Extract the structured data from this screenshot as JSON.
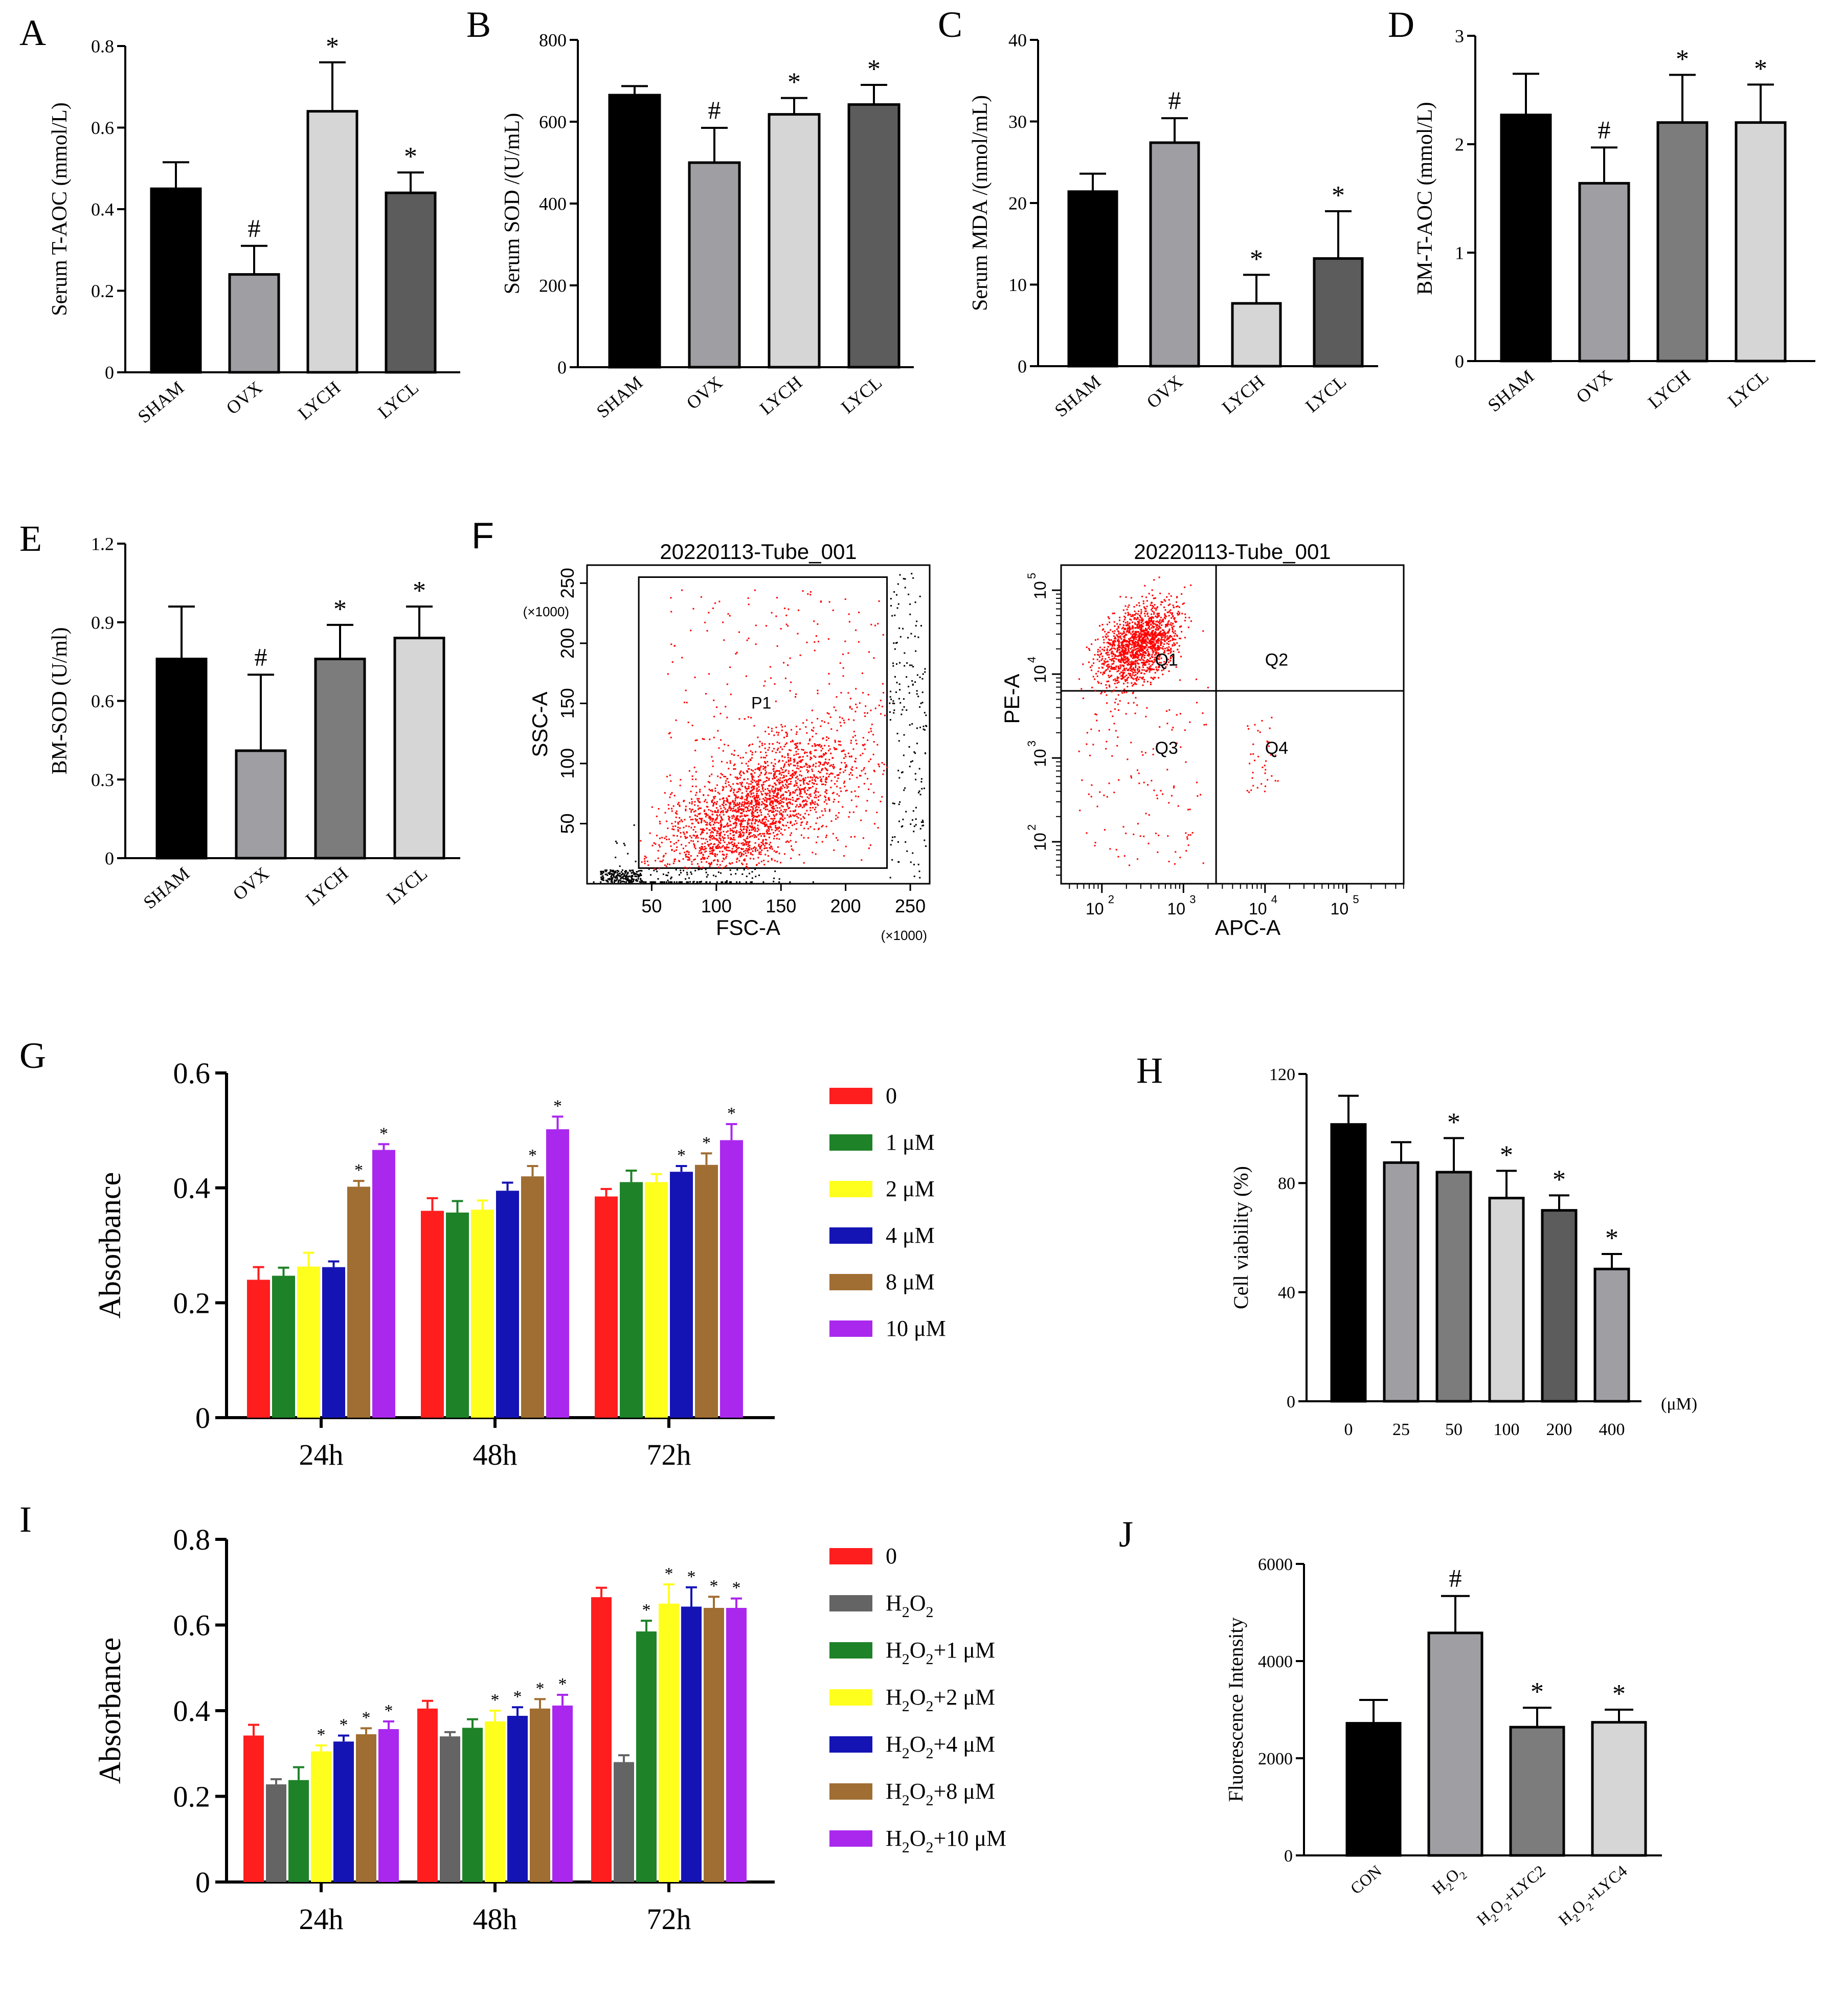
{
  "chart_data": [
    {
      "id": "A",
      "panel_label": "A",
      "type": "bar",
      "ylabel": "Serum T-AOC (mmol/L)",
      "ylim": [
        0,
        0.8
      ],
      "ticks": [
        "0",
        "0.2",
        "0.4",
        "0.6",
        "0.8"
      ],
      "categories": [
        "SHAM",
        "OVX",
        "LYCH",
        "LYCL"
      ],
      "values": [
        0.45,
        0.24,
        0.64,
        0.44
      ],
      "errors": [
        0.065,
        0.07,
        0.12,
        0.05
      ],
      "marks": [
        "",
        "#",
        "*",
        "*"
      ],
      "colors": [
        "#000000",
        "#9e9ea3",
        "#d6d6d6",
        "#5c5c5c"
      ]
    },
    {
      "id": "B",
      "panel_label": "B",
      "type": "bar",
      "ylabel": "Serum SOD /(U/mL)",
      "ylim": [
        0,
        800
      ],
      "ticks": [
        "0",
        "200",
        "400",
        "600",
        "800"
      ],
      "categories": [
        "SHAM",
        "OVX",
        "LYCH",
        "LYCL"
      ],
      "values": [
        665,
        500,
        618,
        642
      ],
      "errors": [
        22,
        85,
        40,
        48
      ],
      "marks": [
        "",
        "#",
        "*",
        "*"
      ],
      "colors": [
        "#000000",
        "#9e9ea3",
        "#d6d6d6",
        "#5c5c5c"
      ]
    },
    {
      "id": "C",
      "panel_label": "C",
      "type": "bar",
      "ylabel": "Serum MDA /(nmol/mL)",
      "ylim": [
        0,
        40
      ],
      "ticks": [
        "0",
        "10",
        "20",
        "30",
        "40"
      ],
      "categories": [
        "SHAM",
        "OVX",
        "LYCH",
        "LYCL"
      ],
      "values": [
        21.4,
        27.4,
        7.7,
        13.2
      ],
      "errors": [
        2.2,
        3.0,
        3.5,
        5.8
      ],
      "marks": [
        "",
        "#",
        "*",
        "*"
      ],
      "colors": [
        "#000000",
        "#9e9ea3",
        "#d6d6d6",
        "#5c5c5c"
      ]
    },
    {
      "id": "D",
      "panel_label": "D",
      "type": "bar",
      "ylabel": "BM-T-AOC (mmol/L)",
      "ylim": [
        0,
        3
      ],
      "ticks": [
        "0",
        "1",
        "2",
        "3"
      ],
      "categories": [
        "SHAM",
        "OVX",
        "LYCH",
        "LYCL"
      ],
      "values": [
        2.27,
        1.64,
        2.2,
        2.2
      ],
      "errors": [
        0.38,
        0.33,
        0.44,
        0.35
      ],
      "marks": [
        "",
        "#",
        "*",
        "*"
      ],
      "colors": [
        "#000000",
        "#9e9ea3",
        "#7c7c7c",
        "#d6d6d6"
      ]
    },
    {
      "id": "E",
      "panel_label": "E",
      "type": "bar",
      "ylabel": "BM-SOD (U/ml)",
      "ylim": [
        0,
        1.2
      ],
      "ticks": [
        "0",
        "0.3",
        "0.6",
        "0.9",
        "1.2"
      ],
      "categories": [
        "SHAM",
        "OVX",
        "LYCH",
        "LYCL"
      ],
      "values": [
        0.76,
        0.41,
        0.76,
        0.84
      ],
      "errors": [
        0.2,
        0.29,
        0.13,
        0.12
      ],
      "marks": [
        "",
        "#",
        "*",
        "*"
      ],
      "colors": [
        "#000000",
        "#9e9ea3",
        "#7c7c7c",
        "#d6d6d6"
      ]
    },
    {
      "id": "F1",
      "panel_label": "F",
      "type": "scatter",
      "title": "20220113-Tube_001",
      "xlabel": "FSC-A",
      "ylabel": "SSC-A",
      "xlim": [
        0,
        265
      ],
      "ylim": [
        0,
        265
      ],
      "xticks": [
        "50",
        "100",
        "150",
        "200",
        "250"
      ],
      "yticks": [
        "50",
        "100",
        "150",
        "200",
        "250"
      ],
      "x_multiplier": "(×1000)",
      "y_multiplier": "(×1000)",
      "gate": {
        "name": "P1",
        "x": [
          40,
          232
        ],
        "y": [
          13,
          255
        ]
      }
    },
    {
      "id": "F2",
      "type": "scatter",
      "title": "20220113-Tube_001",
      "xlabel": "APC-A",
      "ylabel": "PE-A",
      "scale": "log",
      "xlim": [
        1.5,
        5.7
      ],
      "ylim": [
        1.5,
        5.3
      ],
      "tick_base": "10",
      "xticks": [
        "2",
        "3",
        "4",
        "5"
      ],
      "yticks": [
        "2",
        "3",
        "4",
        "5"
      ],
      "quadrants": [
        "Q1",
        "Q2",
        "Q3",
        "Q4"
      ],
      "quadrant_split": {
        "x": 3.4,
        "y": 3.8
      }
    },
    {
      "id": "G",
      "panel_label": "G",
      "type": "bar",
      "ylabel": "Absorbance",
      "ylim": [
        0,
        0.6
      ],
      "ticks": [
        "0",
        "0.2",
        "0.4",
        "0.6"
      ],
      "categories": [
        "24h",
        "48h",
        "72h"
      ],
      "series": [
        {
          "name": "0",
          "color": "#ff1e1e",
          "values": [
            0.24,
            0.36,
            0.385
          ],
          "errors": [
            0.022,
            0.022,
            0.013
          ],
          "marks": [
            "",
            "",
            ""
          ]
        },
        {
          "name": "1 μM",
          "color": "#1e8228",
          "values": [
            0.247,
            0.357,
            0.41
          ],
          "errors": [
            0.014,
            0.02,
            0.02
          ],
          "marks": [
            "",
            "",
            ""
          ]
        },
        {
          "name": "2 μM",
          "color": "#ffff1e",
          "values": [
            0.263,
            0.362,
            0.41
          ],
          "errors": [
            0.024,
            0.016,
            0.014
          ],
          "marks": [
            "",
            "",
            ""
          ]
        },
        {
          "name": "4 μM",
          "color": "#1414b4",
          "values": [
            0.262,
            0.395,
            0.428
          ],
          "errors": [
            0.01,
            0.014,
            0.01
          ],
          "marks": [
            "",
            "",
            "*"
          ]
        },
        {
          "name": "8 μM",
          "color": "#a06e32",
          "values": [
            0.402,
            0.42,
            0.44
          ],
          "errors": [
            0.01,
            0.018,
            0.02
          ],
          "marks": [
            "*",
            "*",
            "*"
          ]
        },
        {
          "name": "10 μM",
          "color": "#aa28ee",
          "values": [
            0.466,
            0.502,
            0.483
          ],
          "errors": [
            0.01,
            0.022,
            0.028
          ],
          "marks": [
            "*",
            "*",
            "*"
          ]
        }
      ]
    },
    {
      "id": "H",
      "panel_label": "H",
      "type": "bar",
      "ylabel": "Cell viability (%)",
      "ylim": [
        0,
        120
      ],
      "ticks": [
        "0",
        "40",
        "80",
        "120"
      ],
      "categories": [
        "0",
        "25",
        "50",
        "100",
        "200",
        "400"
      ],
      "unit": "(μM)",
      "values": [
        101.5,
        87.5,
        84,
        74.5,
        70,
        48.5
      ],
      "errors": [
        10.5,
        7.5,
        12.5,
        10,
        5.5,
        5.5
      ],
      "marks": [
        "",
        "",
        "*",
        "*",
        "*",
        "*"
      ],
      "colors": [
        "#000000",
        "#9e9ea3",
        "#7c7c7c",
        "#d6d6d6",
        "#5c5c5c",
        "#9e9ea3"
      ]
    },
    {
      "id": "I",
      "panel_label": "I",
      "type": "bar",
      "ylabel": "Absorbance",
      "ylim": [
        0,
        0.8
      ],
      "ticks": [
        "0",
        "0.2",
        "0.4",
        "0.6",
        "0.8"
      ],
      "categories": [
        "24h",
        "48h",
        "72h"
      ],
      "series": [
        {
          "name": "0",
          "color": "#ff1e1e",
          "values": [
            0.342,
            0.405,
            0.665
          ],
          "errors": [
            0.025,
            0.018,
            0.022
          ],
          "marks": [
            "",
            "",
            ""
          ]
        },
        {
          "name": "H₂O₂",
          "color": "#646464",
          "values": [
            0.228,
            0.34,
            0.28
          ],
          "errors": [
            0.012,
            0.01,
            0.016
          ],
          "marks": [
            "",
            "",
            ""
          ]
        },
        {
          "name": "H₂O₂+1 μM",
          "color": "#1e8228",
          "values": [
            0.238,
            0.36,
            0.585
          ],
          "errors": [
            0.03,
            0.02,
            0.025
          ],
          "marks": [
            "",
            "",
            "*"
          ]
        },
        {
          "name": "H₂O₂+2 μM",
          "color": "#ffff1e",
          "values": [
            0.305,
            0.375,
            0.65
          ],
          "errors": [
            0.014,
            0.025,
            0.045
          ],
          "marks": [
            "*",
            "*",
            "*"
          ]
        },
        {
          "name": "H₂O₂+4 μM",
          "color": "#1414b4",
          "values": [
            0.328,
            0.388,
            0.643
          ],
          "errors": [
            0.014,
            0.02,
            0.045
          ],
          "marks": [
            "*",
            "*",
            "*"
          ]
        },
        {
          "name": "H₂O₂+8 μM",
          "color": "#a06e32",
          "values": [
            0.345,
            0.405,
            0.64
          ],
          "errors": [
            0.014,
            0.022,
            0.026
          ],
          "marks": [
            "*",
            "*",
            "*"
          ]
        },
        {
          "name": "H₂O₂+10 μM",
          "color": "#aa28ee",
          "values": [
            0.357,
            0.412,
            0.64
          ],
          "errors": [
            0.018,
            0.025,
            0.022
          ],
          "marks": [
            "*",
            "*",
            "*"
          ]
        }
      ]
    },
    {
      "id": "J",
      "panel_label": "J",
      "type": "bar",
      "ylabel": "Fluorescence Intensity",
      "ylim": [
        0,
        6000
      ],
      "ticks": [
        "0",
        "2000",
        "4000",
        "6000"
      ],
      "categories": [
        "CON",
        "H₂O₂",
        "H₂O₂+LYC2",
        "H₂O₂+LYC4"
      ],
      "values": [
        2720,
        4580,
        2640,
        2740
      ],
      "errors": [
        480,
        760,
        400,
        260
      ],
      "marks": [
        "",
        "#",
        "*",
        "*"
      ],
      "colors": [
        "#000000",
        "#9e9ea3",
        "#7c7c7c",
        "#d6d6d6"
      ]
    }
  ]
}
